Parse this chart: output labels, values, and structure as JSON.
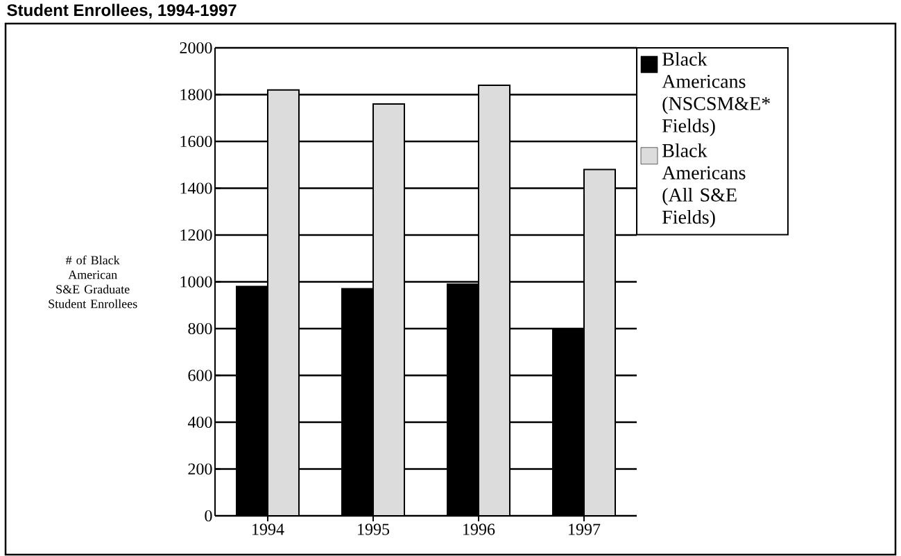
{
  "chart_data": {
    "type": "bar",
    "title": "Student Enrollees, 1994-1997",
    "ylabel": "# of Black American S&E Graduate Student Enrollees",
    "categories": [
      "1994",
      "1995",
      "1996",
      "1997"
    ],
    "series": [
      {
        "name": "Black Americans (NSCSM&E* Fields)",
        "color": "#000000",
        "values": [
          980,
          970,
          990,
          800
        ]
      },
      {
        "name": "Black Americans (All S&E Fields)",
        "color": "#dcdcdc",
        "values": [
          1820,
          1760,
          1840,
          1480
        ]
      }
    ],
    "ylim": [
      0,
      2000
    ],
    "yticks": [
      0,
      200,
      400,
      600,
      800,
      1000,
      1200,
      1400,
      1600,
      1800,
      2000
    ],
    "grid": "y",
    "legend": "top right"
  }
}
